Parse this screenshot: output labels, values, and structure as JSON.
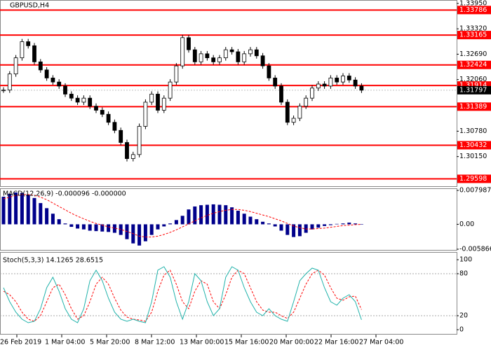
{
  "chart_data": [
    {
      "type": "candlestick",
      "title": "GBPUSD,H4",
      "values": [
        1.318,
        1.322,
        1.326,
        1.33,
        1.329,
        1.325,
        1.323,
        1.321,
        1.32,
        1.319,
        1.317,
        1.316,
        1.315,
        1.316,
        1.314,
        1.313,
        1.312,
        1.31,
        1.308,
        1.305,
        1.301,
        1.302,
        1.309,
        1.315,
        1.317,
        1.313,
        1.316,
        1.32,
        1.324,
        1.331,
        1.328,
        1.325,
        1.327,
        1.326,
        1.325,
        1.326,
        1.328,
        1.3275,
        1.325,
        1.327,
        1.328,
        1.3265,
        1.324,
        1.321,
        1.319,
        1.315,
        1.31,
        1.311,
        1.314,
        1.316,
        1.3185,
        1.3195,
        1.319,
        1.321,
        1.32,
        1.3215,
        1.3205,
        1.319,
        1.31797
      ],
      "ylim": [
        1.2945,
        1.34
      ],
      "yticks": [
        {
          "value": 1.3395,
          "label": "1.33950"
        },
        {
          "value": 1.3332,
          "label": "1.33320"
        },
        {
          "value": 1.3269,
          "label": "1.32690"
        },
        {
          "value": 1.3206,
          "label": "1.32060"
        },
        {
          "value": 1.3078,
          "label": "1.30780"
        },
        {
          "value": 1.3015,
          "label": "1.30150"
        }
      ],
      "levels": [
        1.33786,
        1.33165,
        1.32424,
        1.31914,
        1.31389,
        1.30432,
        1.29598
      ],
      "level_color": "#ff0000",
      "current_price": 1.31797,
      "up_color": "#ffffff",
      "down_color": "#000000"
    },
    {
      "type": "macd",
      "title": "MACD(12,26,9) -0.000096 -0.000000",
      "values": [
        0.0065,
        0.0072,
        0.0075,
        0.0074,
        0.007,
        0.0062,
        0.005,
        0.0038,
        0.0025,
        0.0012,
        0.0002,
        -0.0006,
        -0.001,
        -0.0012,
        -0.0015,
        -0.0016,
        -0.0017,
        -0.0018,
        -0.002,
        -0.0025,
        -0.0035,
        -0.0045,
        -0.005,
        -0.004,
        -0.0025,
        -0.0012,
        -0.0005,
        0.0002,
        0.001,
        0.002,
        0.0035,
        0.0042,
        0.0045,
        0.0046,
        0.0047,
        0.0046,
        0.0045,
        0.004,
        0.0032,
        0.0025,
        0.0018,
        0.0012,
        0.0006,
        0.0002,
        -0.0005,
        -0.0015,
        -0.0025,
        -0.003,
        -0.0028,
        -0.002,
        -0.0012,
        -0.0008,
        -0.0004,
        -0.0002,
        0.0001,
        0.0002,
        0.0004,
        0.0002,
        -9.6e-05
      ],
      "signal": [
        0.006,
        0.0064,
        0.0068,
        0.007,
        0.007,
        0.0068,
        0.0064,
        0.0058,
        0.005,
        0.0042,
        0.0034,
        0.0026,
        0.0019,
        0.0013,
        0.0007,
        0.0002,
        -0.0002,
        -0.0006,
        -0.0009,
        -0.0012,
        -0.0017,
        -0.0022,
        -0.0028,
        -0.003,
        -0.003,
        -0.0028,
        -0.0024,
        -0.0019,
        -0.0013,
        -0.0006,
        0.0001,
        0.0008,
        0.0015,
        0.0021,
        0.0026,
        0.003,
        0.0033,
        0.0035,
        0.0035,
        0.0033,
        0.003,
        0.0026,
        0.0022,
        0.0018,
        0.0013,
        0.0008,
        0.0002,
        -0.0004,
        -0.0008,
        -0.0011,
        -0.0011,
        -0.001,
        -0.0009,
        -0.0007,
        -0.0005,
        -0.0003,
        -0.0002,
        -0.0001,
        0
      ],
      "color": "#00008b",
      "signal_color": "#ff0000",
      "ylim": [
        -0.005866,
        0.007987
      ],
      "yticks": [
        0.007987,
        {
          "value": 0,
          "label": "0.00"
        },
        -0.005866
      ]
    },
    {
      "type": "stochastic",
      "title": "Stoch(5,3,3) 14.1265 28.6515",
      "values": [
        60,
        40,
        25,
        15,
        10,
        12,
        30,
        60,
        75,
        55,
        30,
        15,
        10,
        30,
        70,
        85,
        70,
        45,
        25,
        15,
        12,
        15,
        12,
        10,
        40,
        85,
        90,
        75,
        40,
        15,
        40,
        80,
        70,
        40,
        20,
        30,
        75,
        90,
        85,
        60,
        40,
        25,
        20,
        30,
        20,
        15,
        12,
        40,
        70,
        80,
        88,
        85,
        60,
        40,
        35,
        45,
        50,
        40,
        14.1265
      ],
      "signal": [
        55,
        50,
        40,
        25,
        15,
        12,
        20,
        40,
        60,
        65,
        50,
        30,
        15,
        20,
        40,
        65,
        75,
        65,
        45,
        28,
        18,
        15,
        14,
        12,
        25,
        55,
        78,
        85,
        65,
        40,
        30,
        55,
        70,
        65,
        40,
        30,
        50,
        75,
        85,
        80,
        60,
        40,
        28,
        25,
        25,
        20,
        16,
        25,
        45,
        65,
        80,
        85,
        78,
        60,
        45,
        42,
        47,
        48,
        28.6515
      ],
      "color": "#20b2aa",
      "signal_color": "#ff0000",
      "ylim": [
        0,
        100
      ],
      "yticks": [
        100,
        80,
        20,
        0
      ],
      "levels": [
        80,
        20
      ],
      "xtick_labels": [
        "26 Feb 2019",
        "1 Mar 04:00",
        "5 Mar 20:00",
        "8 Mar 12:00",
        "13 Mar 00:00",
        "15 Mar 16:00",
        "20 Mar 00:00",
        "22 Mar 16:00",
        "27 Mar 04:00"
      ]
    }
  ]
}
